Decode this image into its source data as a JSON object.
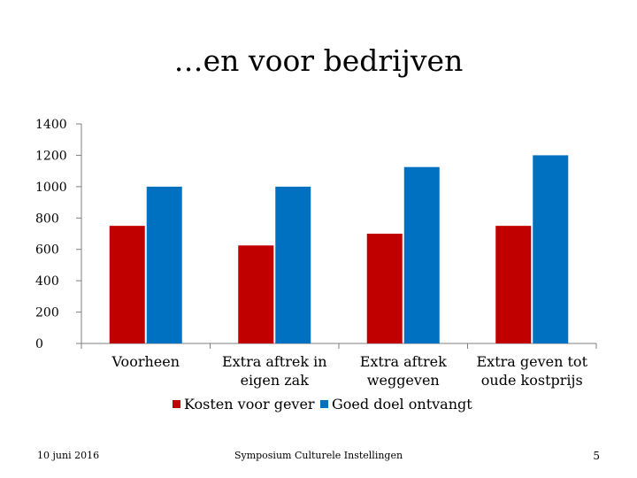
{
  "slide": {
    "title": "…en voor bedrijven",
    "footer_date": "10 juni 2016",
    "footer_center": "Symposium Culturele Instellingen",
    "page_number": "5"
  },
  "colors": {
    "series1": "#c00000",
    "series2": "#0070c0",
    "axis": "#7f7f7f"
  },
  "chart_data": {
    "type": "bar",
    "categories": [
      [
        "Voorheen"
      ],
      [
        "Extra aftrek in",
        "eigen zak"
      ],
      [
        "Extra aftrek",
        "weggeven"
      ],
      [
        "Extra geven tot",
        "oude kostprijs"
      ]
    ],
    "series": [
      {
        "name": "Kosten voor gever",
        "values": [
          750,
          625,
          700,
          750
        ]
      },
      {
        "name": "Goed doel ontvangt",
        "values": [
          1000,
          1000,
          1125,
          1200
        ]
      }
    ],
    "ylim": [
      0,
      1400
    ],
    "yticks": [
      0,
      200,
      400,
      600,
      800,
      1000,
      1200,
      1400
    ],
    "grid": false,
    "legend_position": "bottom"
  }
}
